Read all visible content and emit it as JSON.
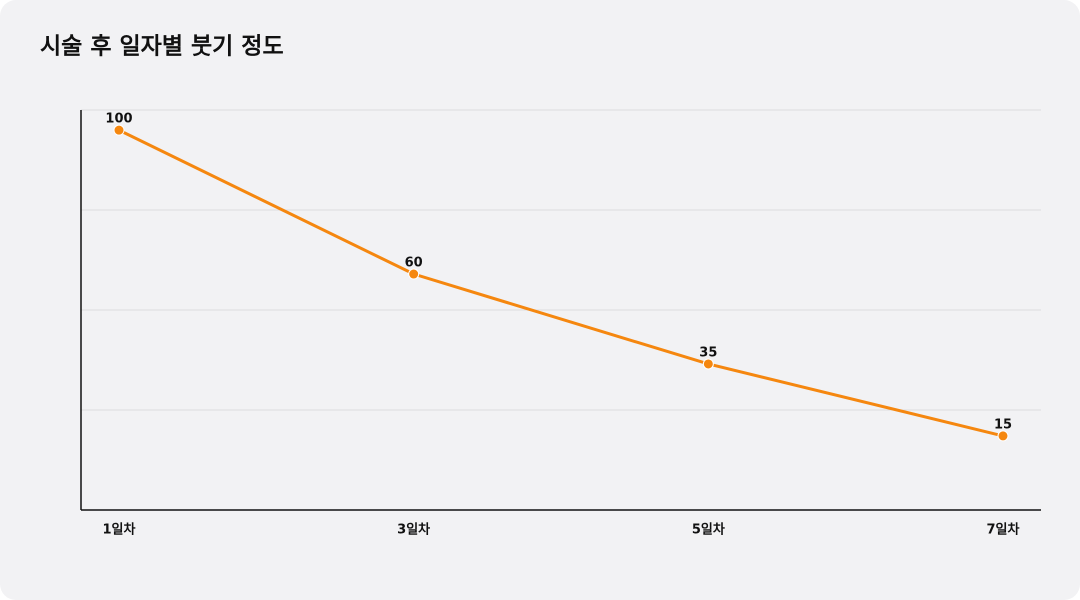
{
  "chart_data": {
    "type": "line",
    "title": "시술 후 일자별 붓기 정도",
    "categories": [
      "1일차",
      "3일차",
      "5일차",
      "7일차"
    ],
    "series": [
      {
        "name": "붓기 정도",
        "color": "#f5870f",
        "values": [
          100,
          60,
          35,
          15
        ]
      }
    ],
    "ylim": [
      -5.6,
      105.6
    ],
    "grid": true
  }
}
